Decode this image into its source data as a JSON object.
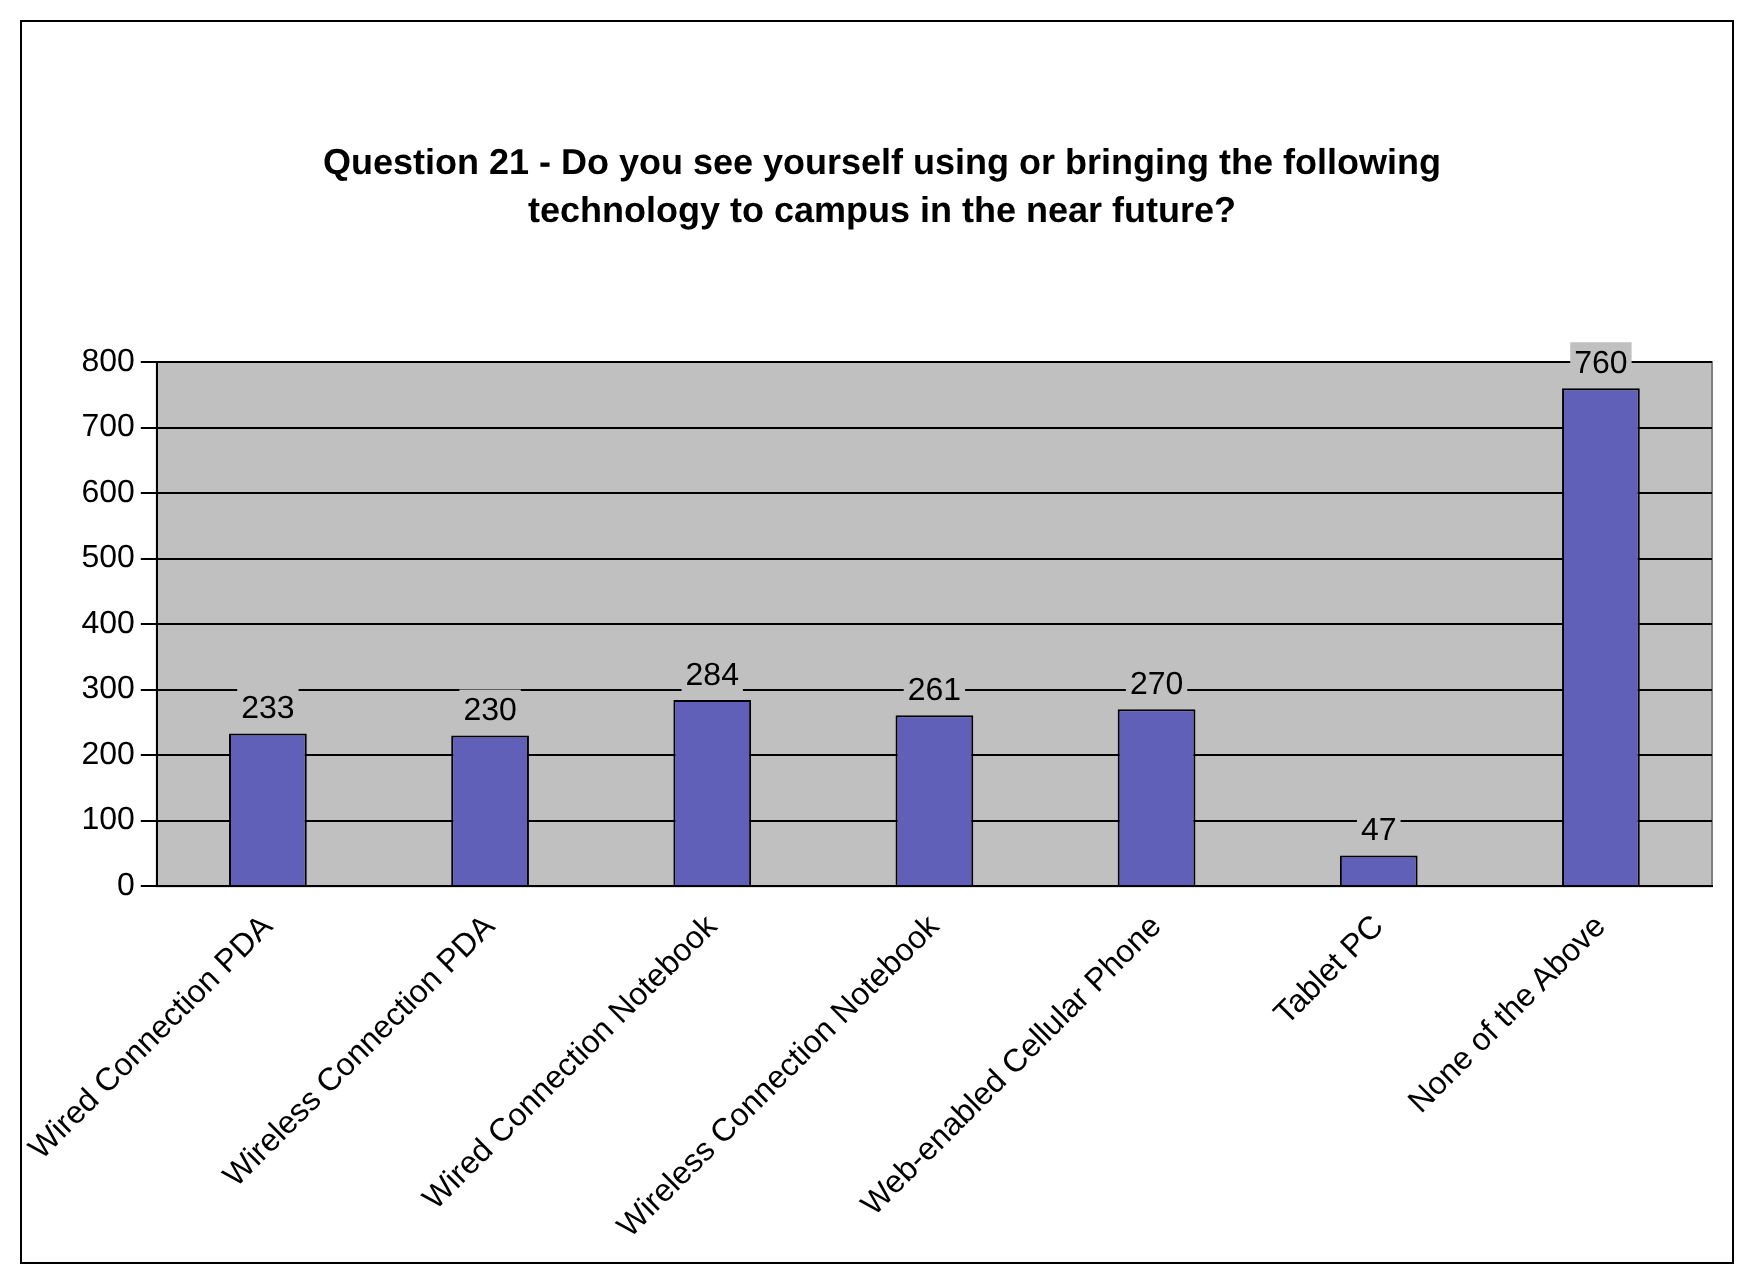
{
  "chart_data": {
    "type": "bar",
    "title": "Question 21 - Do you see yourself using or bringing the following technology to campus in the near future?",
    "categories": [
      "Wired Connection PDA",
      "Wireless Connection PDA",
      "Wired Connection Notebook",
      "Wireless Connection Notebook",
      "Web-enabled Cellular Phone",
      "Tablet PC",
      "None of the Above"
    ],
    "values": [
      233,
      230,
      284,
      261,
      270,
      47,
      760
    ],
    "color": "#6060b8",
    "ylim": [
      0,
      800
    ],
    "yticks": [
      0,
      100,
      200,
      300,
      400,
      500,
      600,
      700,
      800
    ],
    "grid": "y",
    "data_labels": true,
    "legend": false
  }
}
